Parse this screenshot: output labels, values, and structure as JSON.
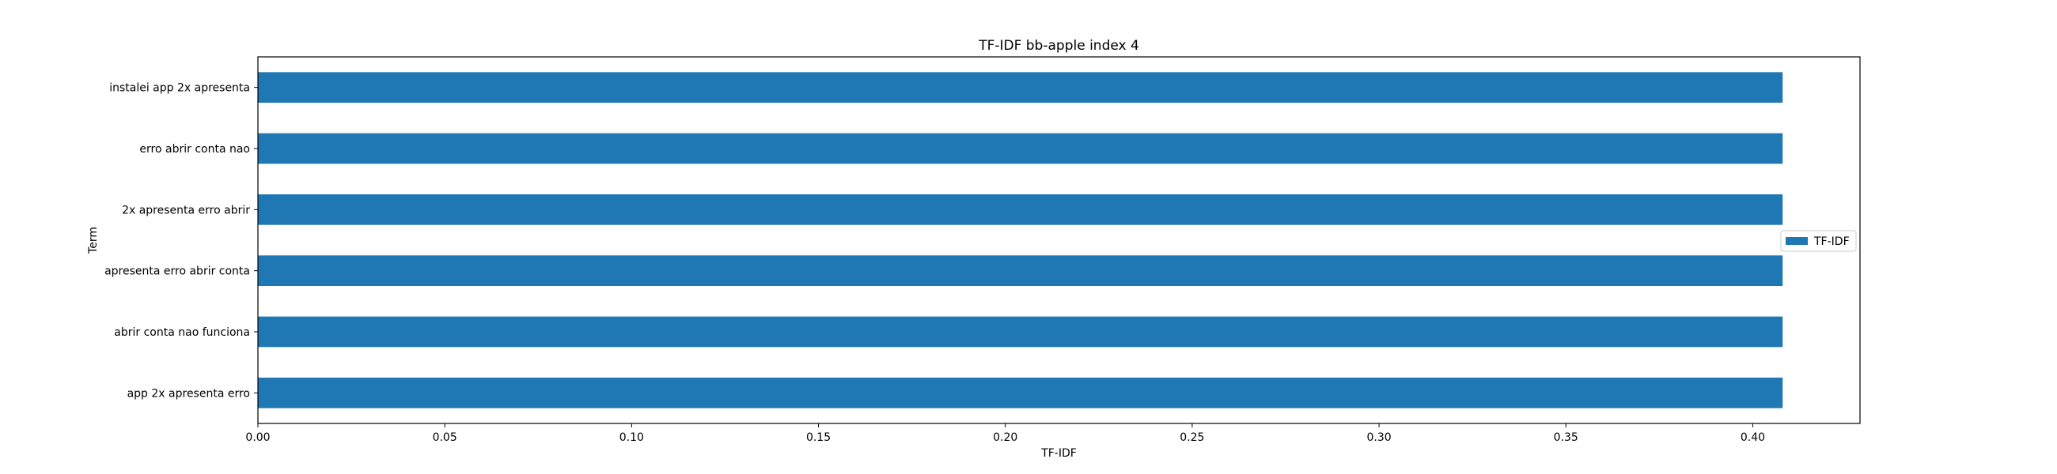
{
  "chart_data": {
    "type": "bar",
    "orientation": "horizontal",
    "title": "TF-IDF bb-apple index 4",
    "xlabel": "TF-IDF",
    "ylabel": "Term",
    "categories": [
      "instalei app 2x apresenta",
      "erro abrir conta nao",
      "2x apresenta erro abrir",
      "apresenta erro abrir conta",
      "abrir conta nao funciona",
      "app 2x apresenta erro"
    ],
    "series": [
      {
        "name": "TF-IDF",
        "values": [
          0.408,
          0.408,
          0.408,
          0.408,
          0.408,
          0.408
        ],
        "color": "#1f77b4"
      }
    ],
    "xlim": [
      0,
      0.4287
    ],
    "xticks": [
      0.0,
      0.05,
      0.1,
      0.15,
      0.2,
      0.25,
      0.3,
      0.35,
      0.4
    ],
    "xtick_labels": [
      "0.00",
      "0.05",
      "0.10",
      "0.15",
      "0.20",
      "0.25",
      "0.30",
      "0.35",
      "0.40"
    ],
    "grid": false,
    "legend_position": "center-right"
  }
}
